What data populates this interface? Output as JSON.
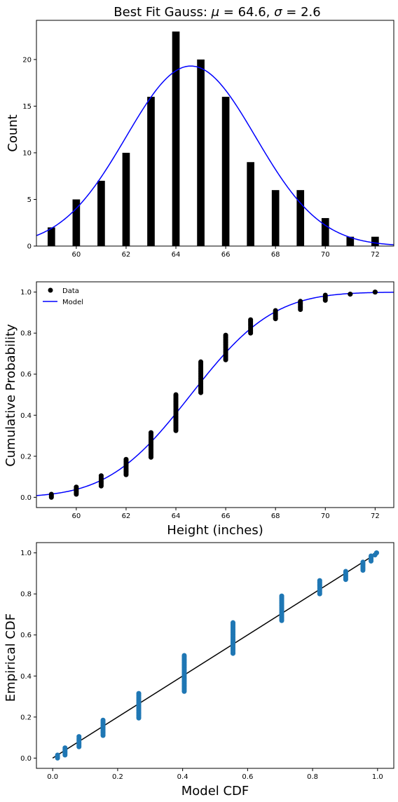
{
  "chart_data": [
    {
      "type": "bar",
      "title": "Best Fit Gauss: μ = 64.6, σ = 2.6",
      "title_parts": {
        "prefix": "Best Fit Gauss: ",
        "mu_symbol": "μ",
        "mu_text": " = 64.6, ",
        "sigma_symbol": "σ",
        "sigma_text": " = 2.6"
      },
      "xlabel": "",
      "ylabel": "Count",
      "xlim": [
        58.4,
        72.75
      ],
      "ylim": [
        0,
        24.2
      ],
      "x_ticks": [
        60,
        62,
        64,
        66,
        68,
        70,
        72
      ],
      "x_tick_labels": [
        "60",
        "62",
        "64",
        "66",
        "68",
        "70",
        "72"
      ],
      "y_ticks": [
        0,
        5,
        10,
        15,
        20
      ],
      "y_tick_labels": [
        "0",
        "5",
        "10",
        "15",
        "20"
      ],
      "bars": {
        "x": [
          59,
          60,
          61,
          62,
          63,
          64,
          65,
          66,
          67,
          68,
          69,
          70,
          71,
          72
        ],
        "values": [
          2,
          5,
          7,
          10,
          16,
          23,
          20,
          16,
          9,
          6,
          6,
          3,
          1,
          1
        ],
        "color": "#000000"
      },
      "curve": {
        "type": "gaussian",
        "mu": 64.6,
        "sigma": 2.6,
        "peak": 19.3,
        "color": "#0000ff"
      },
      "grid": false
    },
    {
      "type": "scatter",
      "xlabel": "Height (inches)",
      "ylabel": "Cumulative Probability",
      "xlim": [
        58.4,
        72.75
      ],
      "ylim": [
        -0.05,
        1.05
      ],
      "x_ticks": [
        60,
        62,
        64,
        66,
        68,
        70,
        72
      ],
      "x_tick_labels": [
        "60",
        "62",
        "64",
        "66",
        "68",
        "70",
        "72"
      ],
      "y_ticks": [
        0.0,
        0.2,
        0.4,
        0.6,
        0.8,
        1.0
      ],
      "y_tick_labels": [
        "0.0",
        "0.2",
        "0.4",
        "0.6",
        "0.8",
        "1.0"
      ],
      "series": [
        {
          "name": "Data",
          "x": [
            59,
            60,
            61,
            62,
            63,
            64,
            65,
            66,
            67,
            68,
            69,
            70,
            71,
            72
          ],
          "y_range": [
            [
              0.0,
              0.015
            ],
            [
              0.015,
              0.05
            ],
            [
              0.055,
              0.105
            ],
            [
              0.11,
              0.185
            ],
            [
              0.195,
              0.315
            ],
            [
              0.325,
              0.5
            ],
            [
              0.51,
              0.66
            ],
            [
              0.67,
              0.79
            ],
            [
              0.8,
              0.865
            ],
            [
              0.87,
              0.91
            ],
            [
              0.915,
              0.955
            ],
            [
              0.96,
              0.985
            ],
            [
              0.99,
              0.99
            ],
            [
              1.0,
              1.0
            ]
          ],
          "color": "#000000"
        },
        {
          "name": "Model",
          "type": "line",
          "cdf_of": {
            "mu": 64.6,
            "sigma": 2.6
          },
          "color": "#0000ff"
        }
      ],
      "legend": {
        "placement": "top-left",
        "entries": [
          "Data",
          "Model"
        ]
      },
      "grid": false
    },
    {
      "type": "scatter",
      "xlabel": "Model CDF",
      "ylabel": "Empirical CDF",
      "xlim": [
        -0.05,
        1.05
      ],
      "ylim": [
        -0.05,
        1.05
      ],
      "x_ticks": [
        0.0,
        0.2,
        0.4,
        0.6,
        0.8,
        1.0
      ],
      "x_tick_labels": [
        "0.0",
        "0.2",
        "0.4",
        "0.6",
        "0.8",
        "1.0"
      ],
      "y_ticks": [
        0.0,
        0.2,
        0.4,
        0.6,
        0.8,
        1.0
      ],
      "y_tick_labels": [
        "0.0",
        "0.2",
        "0.4",
        "0.6",
        "0.8",
        "1.0"
      ],
      "series": [
        {
          "x": [
            0.015,
            0.038,
            0.081,
            0.155,
            0.265,
            0.405,
            0.555,
            0.705,
            0.822,
            0.902,
            0.955,
            0.98,
            0.992,
            0.997
          ],
          "y_range": [
            [
              0.0,
              0.015
            ],
            [
              0.015,
              0.05
            ],
            [
              0.055,
              0.105
            ],
            [
              0.11,
              0.185
            ],
            [
              0.195,
              0.315
            ],
            [
              0.325,
              0.5
            ],
            [
              0.51,
              0.66
            ],
            [
              0.67,
              0.79
            ],
            [
              0.8,
              0.865
            ],
            [
              0.87,
              0.91
            ],
            [
              0.915,
              0.955
            ],
            [
              0.96,
              0.985
            ],
            [
              0.99,
              0.99
            ],
            [
              1.0,
              1.0
            ]
          ],
          "color": "#1f77b4"
        },
        {
          "type": "line",
          "x": [
            0,
            1
          ],
          "y": [
            0,
            1
          ],
          "color": "#000000"
        }
      ],
      "grid": false
    }
  ]
}
